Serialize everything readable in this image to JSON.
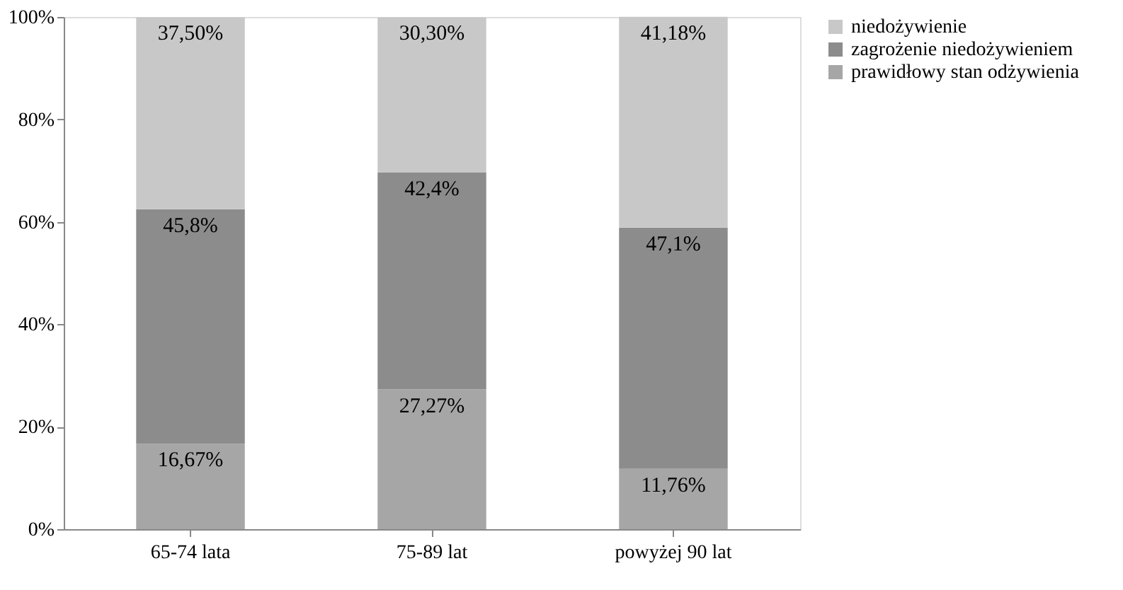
{
  "chart_data": {
    "type": "bar",
    "stacked": true,
    "categories": [
      "65-74 lata",
      "75-89 lat",
      "powyżej 90 lat"
    ],
    "ylim": [
      0,
      100
    ],
    "yticks": [
      {
        "value": 0,
        "label": "0%"
      },
      {
        "value": 20,
        "label": "20%"
      },
      {
        "value": 40,
        "label": "40%"
      },
      {
        "value": 60,
        "label": "60%"
      },
      {
        "value": 80,
        "label": "80%"
      },
      {
        "value": 100,
        "label": "100%"
      }
    ],
    "grid": false,
    "legend": "right",
    "series": [
      {
        "name": "prawidłowy stan odżywienia",
        "color": "#a6a6a6",
        "values": [
          16.67,
          27.27,
          11.76
        ],
        "value_labels": [
          "16,67%",
          "27,27%",
          "11,76%"
        ]
      },
      {
        "name": "zagrożenie niedożywieniem",
        "color": "#8c8c8c",
        "values": [
          45.8,
          42.4,
          47.1
        ],
        "value_labels": [
          "45,8%",
          "42,4%",
          "47,1%"
        ]
      },
      {
        "name": "niedożywienie",
        "color": "#c8c8c8",
        "values": [
          37.5,
          30.3,
          41.18
        ],
        "value_labels": [
          "37,50%",
          "30,30%",
          "41,18%"
        ]
      }
    ]
  }
}
